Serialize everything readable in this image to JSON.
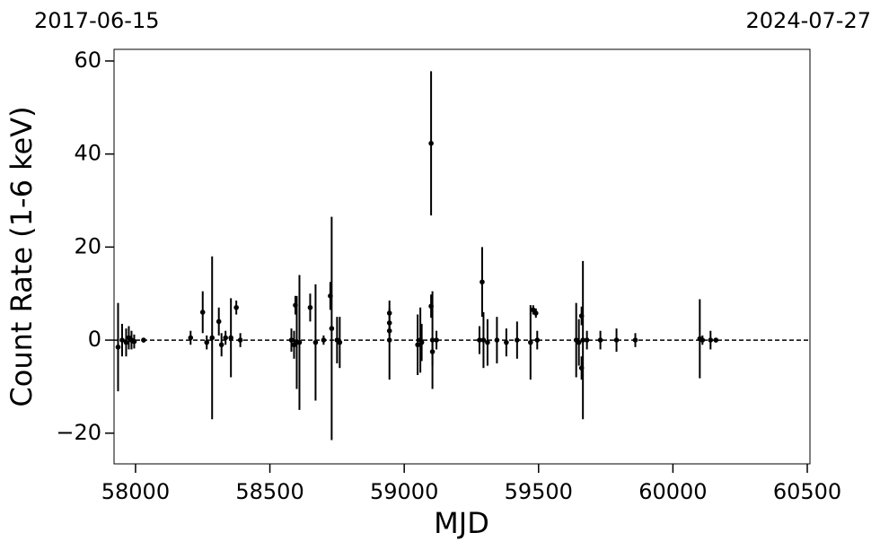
{
  "chart_data": {
    "type": "errorbar",
    "top_left_label": "2017-06-15",
    "top_right_label": "2024-07-27",
    "xlabel": "MJD",
    "ylabel": "Count Rate (1-6 keV)",
    "xlim": [
      57920,
      60510
    ],
    "ylim": [
      -26.6,
      62.5
    ],
    "xticks": [
      58000,
      58500,
      59000,
      59500,
      60000,
      60500
    ],
    "yticks": [
      {
        "value": -20,
        "label": "−20"
      },
      0,
      20,
      40,
      60
    ],
    "hline": 0,
    "color": "#000000",
    "x": [
      57935,
      57950,
      57965,
      57975,
      57985,
      57995,
      58030,
      58205,
      58250,
      58265,
      58285,
      58310,
      58320,
      58335,
      58355,
      58375,
      58390,
      58580,
      58590,
      58595,
      58600,
      58610,
      58650,
      58670,
      58700,
      58725,
      58730,
      58750,
      58760,
      58945,
      58945,
      58945,
      58945,
      59050,
      59060,
      59065,
      59100,
      59100,
      59105,
      59105,
      59120,
      59280,
      59290,
      59295,
      59310,
      59345,
      59380,
      59420,
      59470,
      59480,
      59490,
      59495,
      59640,
      59650,
      59660,
      59660,
      59665,
      59680,
      59730,
      59790,
      59860,
      60100,
      60110,
      60140,
      60160
    ],
    "y": [
      -1.5,
      0,
      -0.5,
      0.5,
      0,
      -0.3,
      0,
      0.5,
      6,
      -0.5,
      0.5,
      4,
      -1,
      0.5,
      0.5,
      7,
      0,
      0,
      -1,
      7.5,
      -0.5,
      -0.5,
      7,
      -0.5,
      0,
      9.5,
      2.5,
      0,
      -0.5,
      0,
      5.8,
      3.7,
      2,
      -1,
      0,
      -0.5,
      42.3,
      7.3,
      -2.5,
      0,
      0,
      0,
      12.5,
      0,
      -0.5,
      0,
      -0.5,
      0,
      -0.5,
      6.5,
      5.8,
      0,
      0,
      -0.5,
      5.2,
      -6,
      0,
      0,
      0,
      0,
      0,
      0.3,
      0,
      0,
      0
    ],
    "yerr": [
      9.5,
      3.5,
      3,
      2.5,
      2,
      1.5,
      0.5,
      1.5,
      4.5,
      1.5,
      17.5,
      3,
      2.5,
      1.5,
      8.5,
      1.5,
      1.5,
      2.5,
      3,
      2,
      10,
      14.5,
      3,
      12.5,
      1,
      3,
      24,
      5,
      5.5,
      8.5,
      1,
      1,
      1,
      6.5,
      7,
      4,
      15.5,
      2.5,
      3,
      10.5,
      2,
      3,
      7.5,
      6,
      5,
      5,
      3,
      4,
      8,
      1,
      1,
      2,
      8,
      5,
      2,
      2.5,
      17,
      2,
      2,
      2.5,
      1.5,
      8.5,
      1,
      2,
      0.5
    ]
  }
}
